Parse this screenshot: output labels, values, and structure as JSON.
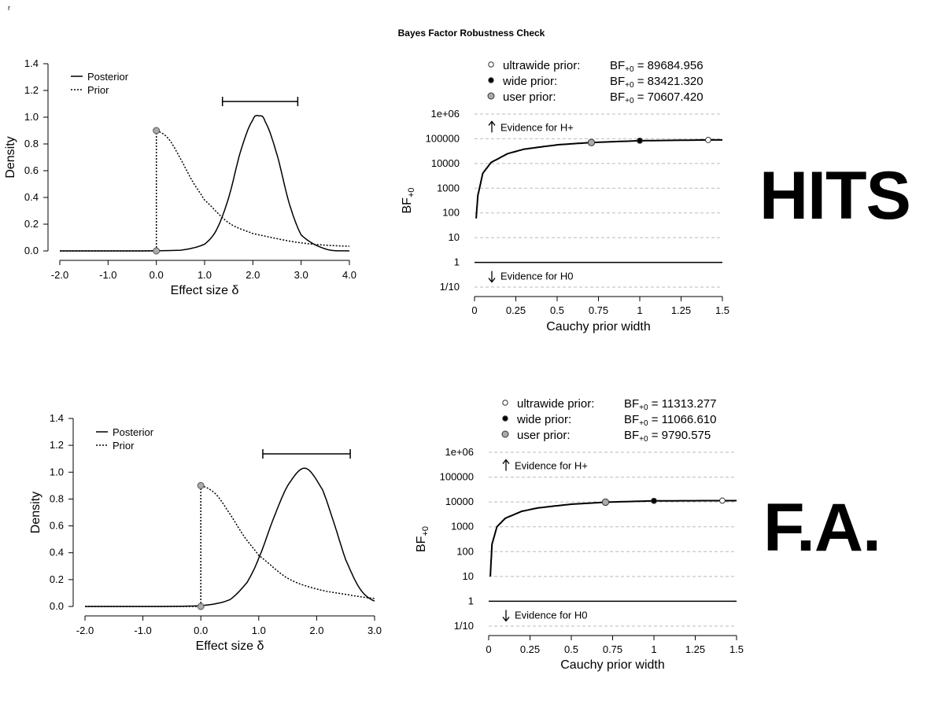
{
  "corner_mark": "r",
  "title": "Bayes Factor Robustness Check",
  "big_labels": {
    "top": "HITS",
    "bottom": "F.A."
  },
  "colors": {
    "line": "#000000",
    "grid": "#bbbbbb",
    "user_point": "#aaaaaa",
    "wide_point": "#000000",
    "ultrawide_point": "#ffffff"
  },
  "panels": [
    {
      "prior_posterior": {
        "legend": [
          "Posterior",
          "Prior"
        ],
        "xlabel": "Effect size δ",
        "ylabel": "Density",
        "xlim": [
          -2,
          4
        ],
        "ylim": [
          0,
          1.4
        ],
        "xticks": [
          "-2.0",
          "-1.0",
          "0.0",
          "1.0",
          "2.0",
          "3.0",
          "4.0"
        ],
        "yticks": [
          "0.0",
          "0.2",
          "0.4",
          "0.6",
          "0.8",
          "1.0",
          "1.2",
          "1.4"
        ]
      },
      "robustness": {
        "legend": [
          {
            "label": "ultrawide prior:",
            "bf_prefix": "BF",
            "bf_sub": "+0",
            "bf_value": "89684.956",
            "style": "ultrawide"
          },
          {
            "label": "wide prior:",
            "bf_prefix": "BF",
            "bf_sub": "+0",
            "bf_value": "83421.320",
            "style": "wide"
          },
          {
            "label": "user prior:",
            "bf_prefix": "BF",
            "bf_sub": "+0",
            "bf_value": "70607.420",
            "style": "user"
          }
        ],
        "evidence_up": "Evidence for H+",
        "evidence_down": "Evidence for H0",
        "xlabel": "Cauchy prior width",
        "ylabel": "BF",
        "ylabel_sub": "+0",
        "xticks": [
          "0",
          "0.25",
          "0.5",
          "0.75",
          "1",
          "1.25",
          "1.5"
        ],
        "yticks": [
          "1/10",
          "1",
          "10",
          "100",
          "1000",
          "10000",
          "100000",
          "1e+06"
        ]
      }
    },
    {
      "prior_posterior": {
        "legend": [
          "Posterior",
          "Prior"
        ],
        "xlabel": "Effect size δ",
        "ylabel": "Density",
        "xlim": [
          -2,
          3
        ],
        "ylim": [
          0,
          1.4
        ],
        "xticks": [
          "-2.0",
          "-1.0",
          "0.0",
          "1.0",
          "2.0",
          "3.0"
        ],
        "yticks": [
          "0.0",
          "0.2",
          "0.4",
          "0.6",
          "0.8",
          "1.0",
          "1.2",
          "1.4"
        ]
      },
      "robustness": {
        "legend": [
          {
            "label": "ultrawide prior:",
            "bf_prefix": "BF",
            "bf_sub": "+0",
            "bf_value": "11313.277",
            "style": "ultrawide"
          },
          {
            "label": "wide prior:",
            "bf_prefix": "BF",
            "bf_sub": "+0",
            "bf_value": "11066.610",
            "style": "wide"
          },
          {
            "label": "user prior:",
            "bf_prefix": "BF",
            "bf_sub": "+0",
            "bf_value": "9790.575",
            "style": "user"
          }
        ],
        "evidence_up": "Evidence for H+",
        "evidence_down": "Evidence for H0",
        "xlabel": "Cauchy prior width",
        "ylabel": "BF",
        "ylabel_sub": "+0",
        "xticks": [
          "0",
          "0.25",
          "0.5",
          "0.75",
          "1",
          "1.25",
          "1.5"
        ],
        "yticks": [
          "1/10",
          "1",
          "10",
          "100",
          "1000",
          "10000",
          "100000",
          "1e+06"
        ]
      }
    }
  ],
  "chart_data": [
    {
      "type": "line",
      "xlabel": "Effect size δ",
      "ylabel": "Density",
      "xlim": [
        -2,
        4
      ],
      "ylim": [
        0,
        1.4
      ],
      "series": [
        {
          "name": "Posterior",
          "x": [
            -2.0,
            0.5,
            1.0,
            1.25,
            1.5,
            1.75,
            2.0,
            2.13,
            2.25,
            2.5,
            2.75,
            3.0,
            3.5,
            4.0
          ],
          "y": [
            0.0,
            0.005,
            0.05,
            0.16,
            0.4,
            0.75,
            0.98,
            1.01,
            0.97,
            0.72,
            0.36,
            0.12,
            0.015,
            0.0
          ]
        },
        {
          "name": "Prior",
          "x": [
            0.0,
            0.25,
            0.5,
            0.75,
            1.0,
            1.5,
            2.0,
            3.0,
            4.0
          ],
          "y": [
            0.9,
            0.84,
            0.69,
            0.52,
            0.38,
            0.21,
            0.13,
            0.06,
            0.035
          ]
        }
      ],
      "points": [
        {
          "x": 0,
          "y": 0.9
        },
        {
          "x": 0,
          "y": 0.0
        }
      ],
      "credible_interval": [
        1.37,
        2.93
      ]
    },
    {
      "type": "line",
      "xlabel": "Cauchy prior width",
      "ylabel": "BF+0",
      "xlim": [
        0,
        1.5
      ],
      "ylim": [
        "1/10",
        "1e+06"
      ],
      "log_y": true,
      "series": [
        {
          "name": "",
          "x": [
            0.01,
            0.02,
            0.05,
            0.1,
            0.2,
            0.3,
            0.5,
            0.707,
            1.0,
            1.414,
            1.5
          ],
          "y": [
            60,
            500,
            4000,
            11000,
            25000,
            38000,
            57000,
            70607.42,
            83421.32,
            89684.956,
            90000
          ]
        }
      ],
      "points": [
        {
          "name": "user prior",
          "x": 0.707,
          "y": 70607.42
        },
        {
          "name": "wide prior",
          "x": 1.0,
          "y": 83421.32
        },
        {
          "name": "ultrawide prior",
          "x": 1.414,
          "y": 89684.956
        }
      ]
    },
    {
      "type": "line",
      "xlabel": "Effect size δ",
      "ylabel": "Density",
      "xlim": [
        -2,
        3
      ],
      "ylim": [
        0,
        1.4
      ],
      "series": [
        {
          "name": "Posterior",
          "x": [
            -2.0,
            0.0,
            0.5,
            0.8,
            1.0,
            1.25,
            1.5,
            1.8,
            2.1,
            2.3,
            2.5,
            2.75,
            3.0
          ],
          "y": [
            0.0,
            0.005,
            0.05,
            0.18,
            0.36,
            0.65,
            0.9,
            1.03,
            0.87,
            0.62,
            0.35,
            0.13,
            0.04
          ]
        },
        {
          "name": "Prior",
          "x": [
            0.0,
            0.25,
            0.5,
            0.75,
            1.0,
            1.5,
            2.0,
            2.5,
            3.0
          ],
          "y": [
            0.9,
            0.84,
            0.69,
            0.52,
            0.38,
            0.21,
            0.13,
            0.09,
            0.06
          ]
        }
      ],
      "points": [
        {
          "x": 0,
          "y": 0.9
        },
        {
          "x": 0,
          "y": 0.0
        }
      ],
      "credible_interval": [
        1.07,
        2.58
      ]
    },
    {
      "type": "line",
      "xlabel": "Cauchy prior width",
      "ylabel": "BF+0",
      "xlim": [
        0,
        1.5
      ],
      "ylim": [
        "1/10",
        "1e+06"
      ],
      "log_y": true,
      "series": [
        {
          "name": "",
          "x": [
            0.01,
            0.02,
            0.05,
            0.1,
            0.2,
            0.3,
            0.5,
            0.707,
            1.0,
            1.414,
            1.5
          ],
          "y": [
            10,
            200,
            1000,
            2200,
            4200,
            5800,
            8100,
            9790.575,
            11066.61,
            11313.277,
            11300
          ]
        }
      ],
      "points": [
        {
          "name": "user prior",
          "x": 0.707,
          "y": 9790.575
        },
        {
          "name": "wide prior",
          "x": 1.0,
          "y": 11066.61
        },
        {
          "name": "ultrawide prior",
          "x": 1.414,
          "y": 11313.277
        }
      ]
    }
  ]
}
